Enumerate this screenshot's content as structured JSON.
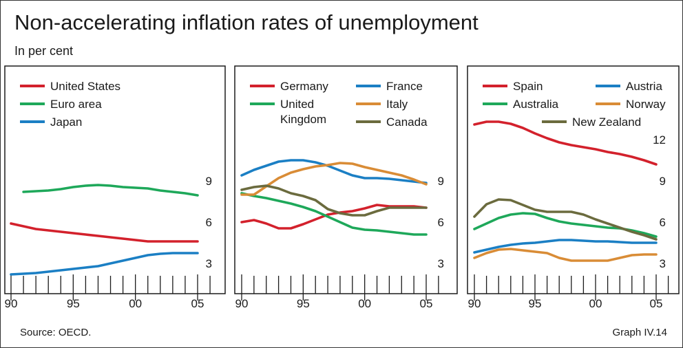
{
  "title": "Non-accelerating inflation rates of unemployment",
  "subtitle": "In per cent",
  "source": "Source: OECD.",
  "graph_id": "Graph IV.14",
  "chart_data": [
    {
      "type": "line",
      "xlim": [
        1990,
        2006
      ],
      "ylim": [
        0,
        15
      ],
      "yticks": [
        3,
        6,
        9
      ],
      "x_tick_labels": [
        "90",
        "95",
        "00",
        "05"
      ],
      "x": [
        1990,
        1991,
        1992,
        1993,
        1994,
        1995,
        1996,
        1997,
        1998,
        1999,
        2000,
        2001,
        2002,
        2003,
        2004,
        2005
      ],
      "series": [
        {
          "name": "United States",
          "color": "#d3212c",
          "values": [
            5.9,
            5.7,
            5.5,
            5.4,
            5.3,
            5.2,
            5.1,
            5.0,
            4.9,
            4.8,
            4.7,
            4.6,
            4.6,
            4.6,
            4.6,
            4.6
          ]
        },
        {
          "name": "Euro area",
          "color": "#1ea85a",
          "values": [
            null,
            8.2,
            8.25,
            8.3,
            8.4,
            8.55,
            8.65,
            8.7,
            8.65,
            8.55,
            8.5,
            8.45,
            8.3,
            8.2,
            8.1,
            7.95
          ]
        },
        {
          "name": "Japan",
          "color": "#1b7fc4",
          "values": [
            2.2,
            2.25,
            2.3,
            2.4,
            2.5,
            2.6,
            2.7,
            2.8,
            3.0,
            3.2,
            3.4,
            3.6,
            3.7,
            3.75,
            3.75,
            3.75
          ]
        }
      ]
    },
    {
      "type": "line",
      "xlim": [
        1990,
        2006
      ],
      "ylim": [
        0,
        15
      ],
      "yticks": [
        3,
        6,
        9
      ],
      "x_tick_labels": [
        "90",
        "95",
        "00",
        "05"
      ],
      "x": [
        1990,
        1991,
        1992,
        1993,
        1994,
        1995,
        1996,
        1997,
        1998,
        1999,
        2000,
        2001,
        2002,
        2003,
        2004,
        2005
      ],
      "series": [
        {
          "name": "Germany",
          "color": "#d3212c",
          "values": [
            6.0,
            6.15,
            5.9,
            5.55,
            5.55,
            5.85,
            6.2,
            6.55,
            6.7,
            6.8,
            7.0,
            7.25,
            7.15,
            7.15,
            7.15,
            7.05
          ]
        },
        {
          "name": "France",
          "color": "#1b7fc4",
          "values": [
            9.4,
            9.8,
            10.1,
            10.4,
            10.5,
            10.5,
            10.35,
            10.1,
            9.75,
            9.4,
            9.2,
            9.2,
            9.15,
            9.05,
            8.95,
            8.85
          ]
        },
        {
          "name": "United Kingdom",
          "color": "#1ea85a",
          "values": [
            8.1,
            7.9,
            7.75,
            7.55,
            7.35,
            7.1,
            6.8,
            6.4,
            6.0,
            5.6,
            5.45,
            5.4,
            5.3,
            5.2,
            5.1,
            5.1
          ]
        },
        {
          "name": "Italy",
          "color": "#d98c36",
          "values": [
            8.0,
            8.0,
            8.6,
            9.2,
            9.6,
            9.85,
            10.05,
            10.15,
            10.3,
            10.25,
            10.0,
            9.8,
            9.6,
            9.4,
            9.1,
            8.75
          ]
        },
        {
          "name": "Canada",
          "color": "#6b6b3e",
          "values": [
            8.35,
            8.55,
            8.65,
            8.45,
            8.1,
            7.9,
            7.6,
            6.95,
            6.65,
            6.5,
            6.5,
            6.8,
            7.05,
            7.05,
            7.05,
            7.05
          ]
        }
      ]
    },
    {
      "type": "line",
      "xlim": [
        1990,
        2006
      ],
      "ylim": [
        0,
        15
      ],
      "yticks": [
        3,
        6,
        9,
        12
      ],
      "x_tick_labels": [
        "90",
        "95",
        "00",
        "05"
      ],
      "x": [
        1990,
        1991,
        1992,
        1993,
        1994,
        1995,
        1996,
        1997,
        1998,
        1999,
        2000,
        2001,
        2002,
        2003,
        2004,
        2005
      ],
      "series": [
        {
          "name": "Spain",
          "color": "#d3212c",
          "values": [
            13.1,
            13.3,
            13.3,
            13.15,
            12.85,
            12.45,
            12.1,
            11.8,
            11.6,
            11.45,
            11.3,
            11.1,
            10.95,
            10.75,
            10.5,
            10.2
          ]
        },
        {
          "name": "Austria",
          "color": "#1b7fc4",
          "values": [
            3.8,
            4.0,
            4.2,
            4.35,
            4.45,
            4.5,
            4.6,
            4.7,
            4.7,
            4.65,
            4.6,
            4.6,
            4.55,
            4.5,
            4.5,
            4.5
          ]
        },
        {
          "name": "Australia",
          "color": "#1ea85a",
          "values": [
            5.5,
            5.9,
            6.3,
            6.55,
            6.65,
            6.6,
            6.3,
            6.05,
            5.9,
            5.8,
            5.7,
            5.6,
            5.55,
            5.4,
            5.2,
            4.95
          ]
        },
        {
          "name": "Norway",
          "color": "#d98c36",
          "values": [
            3.4,
            3.75,
            4.0,
            4.05,
            3.95,
            3.85,
            3.75,
            3.4,
            3.2,
            3.2,
            3.2,
            3.2,
            3.4,
            3.6,
            3.65,
            3.65
          ]
        },
        {
          "name": "New Zealand",
          "color": "#6b6b3e",
          "values": [
            6.4,
            7.3,
            7.65,
            7.6,
            7.25,
            6.9,
            6.75,
            6.75,
            6.75,
            6.55,
            6.2,
            5.9,
            5.6,
            5.3,
            5.05,
            4.75
          ]
        }
      ]
    }
  ],
  "legends": [
    [
      {
        "text": [
          "United States"
        ],
        "color": "#d3212c"
      },
      {
        "text": [
          "Euro area"
        ],
        "color": "#1ea85a"
      },
      {
        "text": [
          "Japan"
        ],
        "color": "#1b7fc4"
      }
    ],
    [
      {
        "text": [
          "Germany"
        ],
        "color": "#d3212c"
      },
      {
        "text": [
          "France"
        ],
        "color": "#1b7fc4"
      },
      {
        "text": [
          "United",
          "Kingdom"
        ],
        "color": "#1ea85a"
      },
      {
        "text": [
          "Italy"
        ],
        "color": "#d98c36"
      },
      {
        "text": [
          "Canada"
        ],
        "color": "#6b6b3e"
      }
    ],
    [
      {
        "text": [
          "Spain"
        ],
        "color": "#d3212c"
      },
      {
        "text": [
          "Austria"
        ],
        "color": "#1b7fc4"
      },
      {
        "text": [
          "Australia"
        ],
        "color": "#1ea85a"
      },
      {
        "text": [
          "Norway"
        ],
        "color": "#d98c36"
      },
      {
        "text": [
          "New Zealand"
        ],
        "color": "#6b6b3e"
      }
    ]
  ]
}
